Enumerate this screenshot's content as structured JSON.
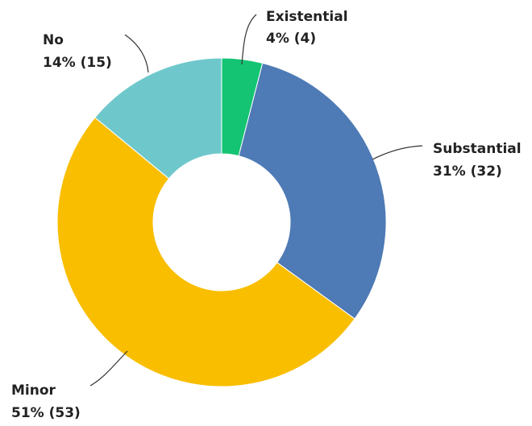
{
  "chart_data": {
    "type": "pie",
    "donut": true,
    "title": "",
    "categories": [
      "Existential",
      "Substantial",
      "Minor",
      "No"
    ],
    "values": [
      4,
      31,
      51,
      14
    ],
    "counts": [
      4,
      32,
      53,
      15
    ],
    "value_labels": [
      "4% (4)",
      "31% (32)",
      "51% (53)",
      "14% (15)"
    ],
    "colors": [
      "#14c472",
      "#4e7ab5",
      "#f9be00",
      "#6ec8cb"
    ],
    "legend": "none",
    "direct_labels": true
  }
}
